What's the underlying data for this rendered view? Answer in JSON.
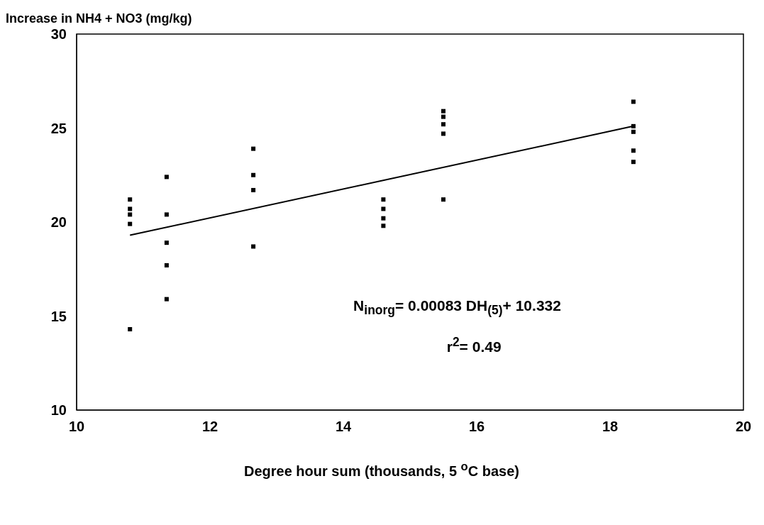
{
  "chart_data": {
    "type": "scatter",
    "ylabel": "Increase in NH4 + NO3 (mg/kg)",
    "xlabel": "Degree hour sum (thousands, 5 $^{o}$C base)",
    "series": [
      {
        "type": "scatter",
        "color": "#000000",
        "marker": "square",
        "x": [
          10.8,
          10.8,
          10.8,
          10.8,
          10.8,
          11.35,
          11.35,
          11.35,
          11.35,
          11.35,
          12.65,
          12.65,
          12.65,
          12.65,
          14.6,
          14.6,
          14.6,
          14.6,
          15.5,
          15.5,
          15.5,
          15.5,
          15.5,
          18.35,
          18.35,
          18.35,
          18.35,
          18.35
        ],
        "values": [
          21.2,
          20.7,
          20.4,
          19.9,
          14.3,
          22.4,
          20.4,
          18.9,
          17.7,
          15.9,
          23.9,
          22.5,
          21.7,
          18.7,
          21.2,
          20.7,
          20.2,
          19.8,
          25.9,
          25.6,
          25.2,
          24.7,
          21.2,
          26.4,
          25.1,
          24.8,
          23.8,
          23.2
        ]
      },
      {
        "type": "line",
        "color": "#000000",
        "marker": "none",
        "x": [
          10.8,
          18.35
        ],
        "values": [
          19.3,
          25.1
        ]
      }
    ],
    "xlim": [
      10,
      20
    ],
    "xticks": [
      10,
      12,
      14,
      16,
      18,
      20
    ],
    "ylim": [
      10,
      30
    ],
    "yticks": [
      10,
      15,
      20,
      25,
      30
    ],
    "grid": false,
    "legend": false,
    "line_style": "solid",
    "annotations": [
      "N$_{inorg}$= 0.00083 DH$_{(5)}$+ 10.332",
      "r$^{2}$= 0.49"
    ]
  }
}
